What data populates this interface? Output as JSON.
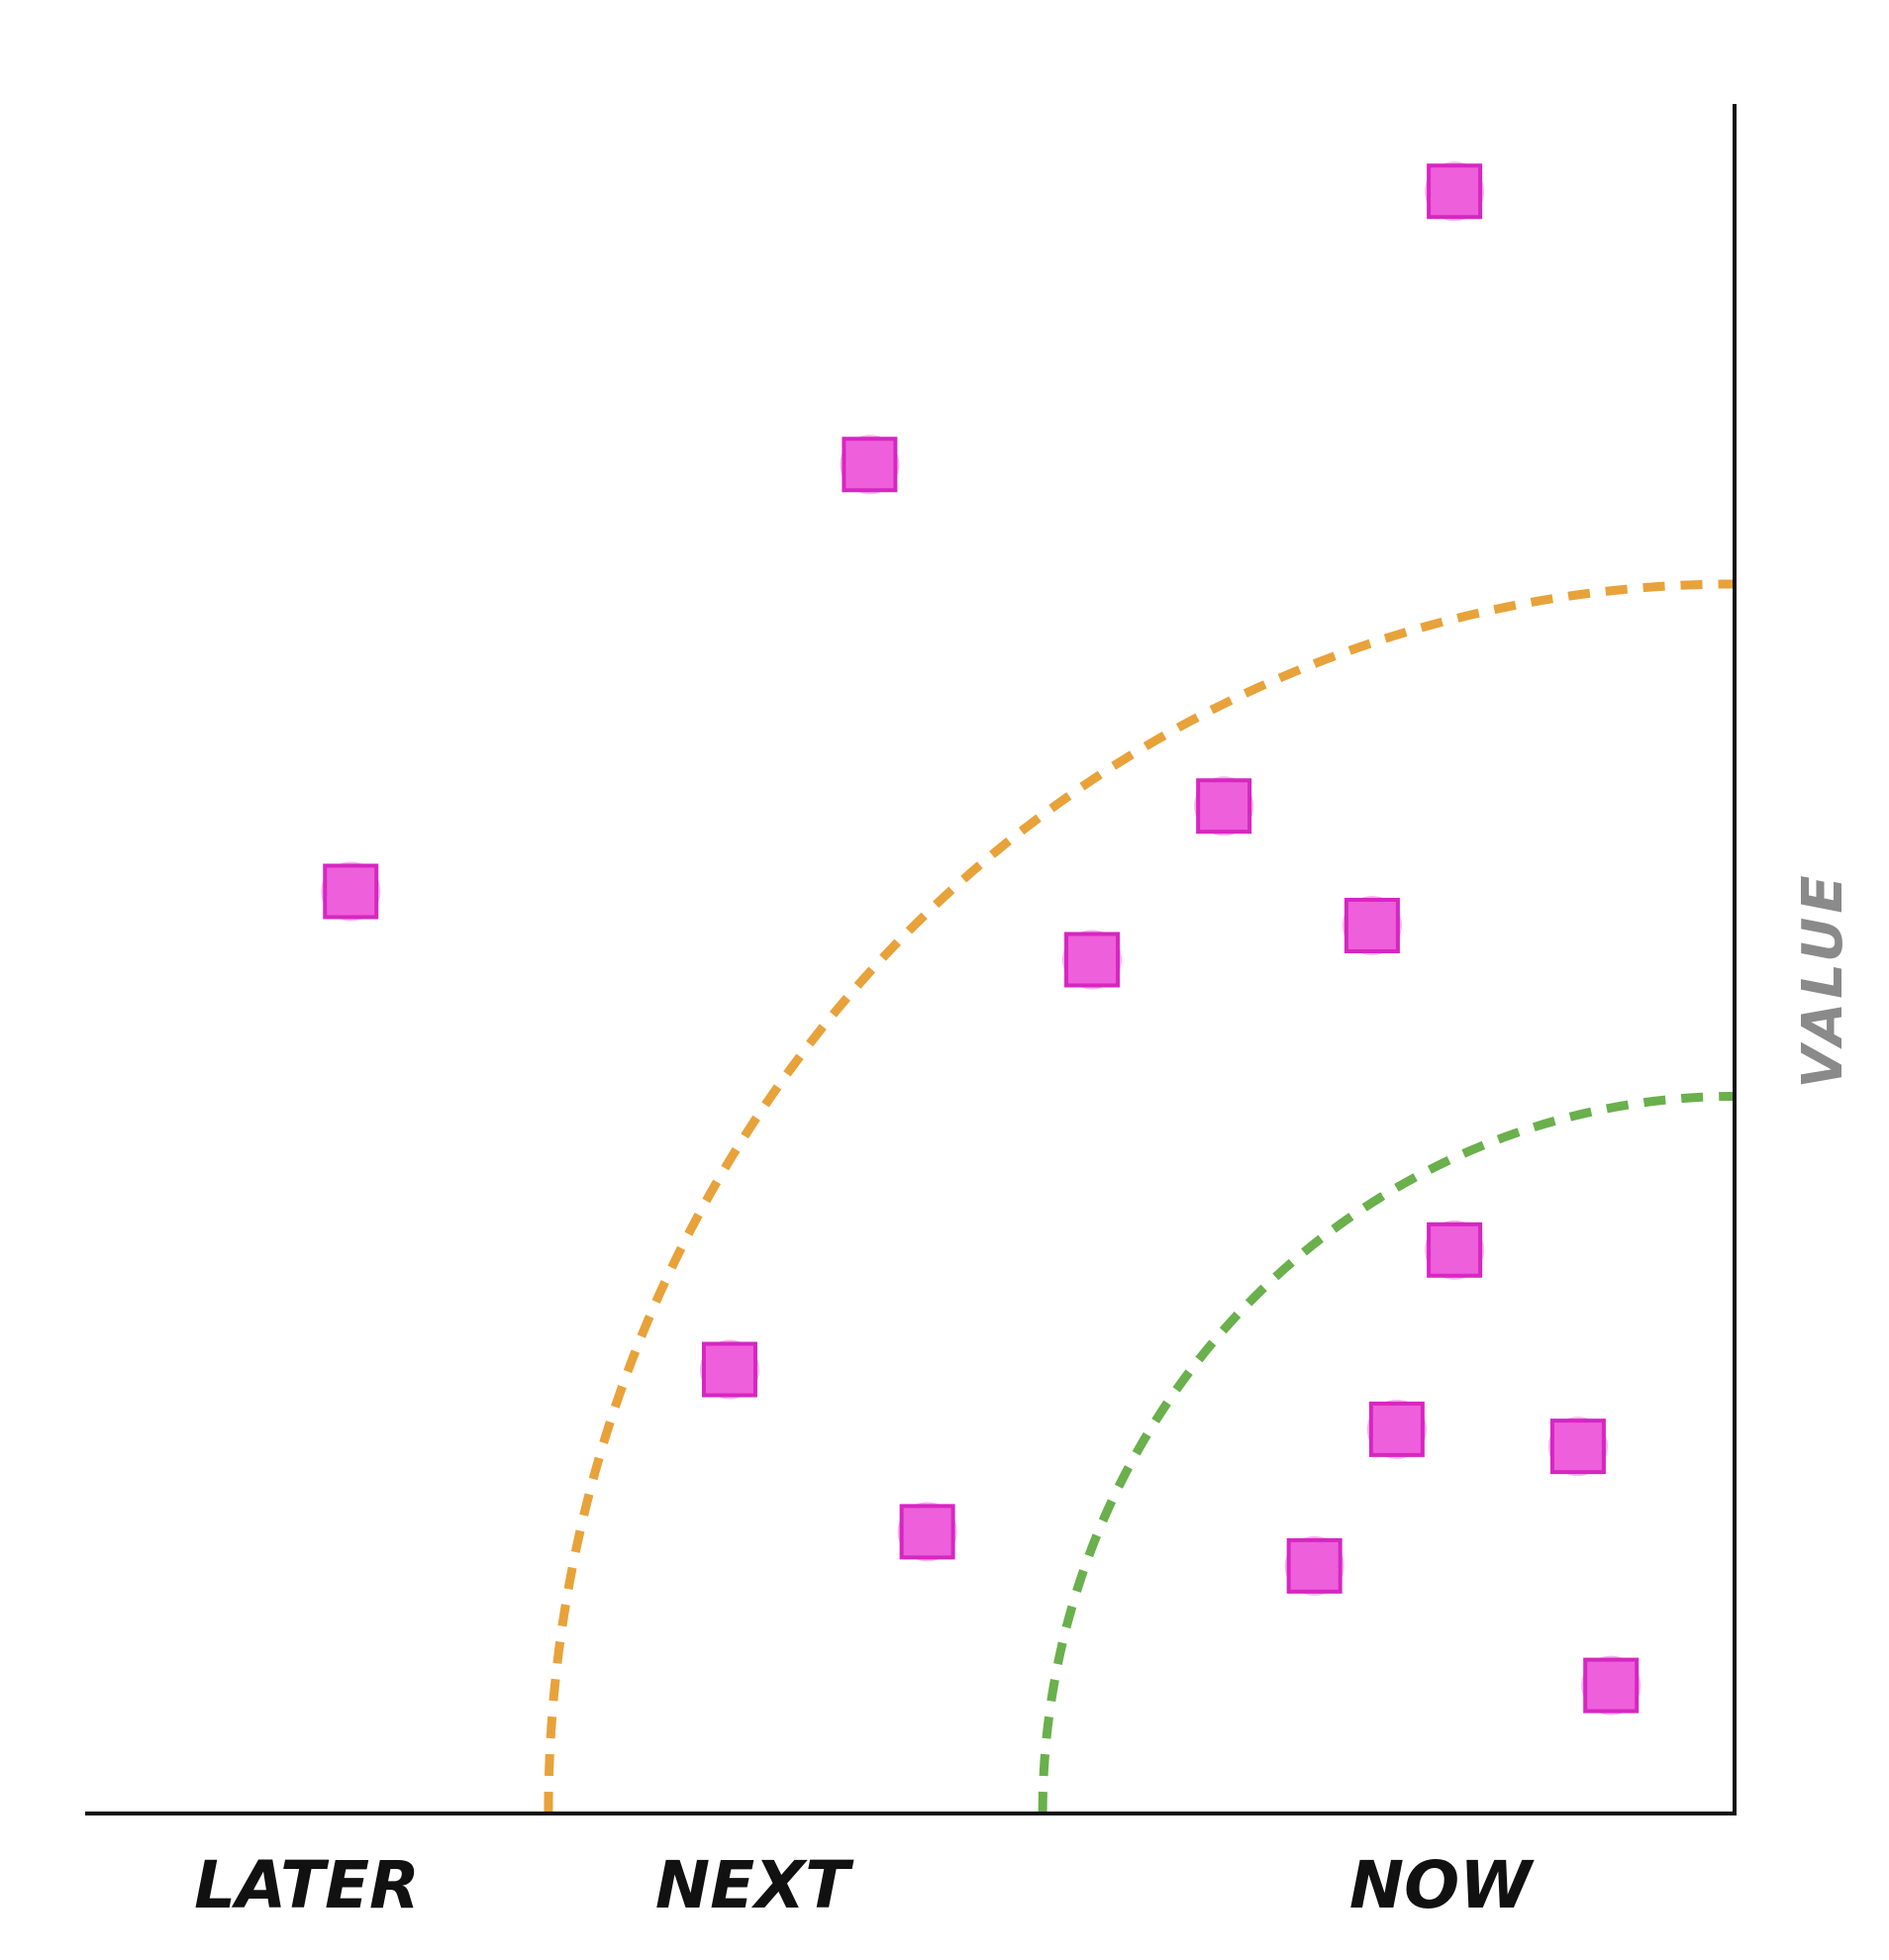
{
  "chart_data": {
    "type": "scatter",
    "title": "",
    "xlabel": "",
    "ylabel": "VALUE",
    "xlim": [
      0,
      100
    ],
    "ylim": [
      0,
      100
    ],
    "grid": false,
    "x_categories": [
      "LATER",
      "NEXT",
      "NOW"
    ],
    "thresholds": [
      {
        "color": "#e8a23a",
        "radius": 72
      },
      {
        "color": "#6ab04c",
        "radius": 42
      }
    ],
    "series": [
      {
        "color": "#ee5fdb",
        "points": [
          {
            "x": 83,
            "y": 95
          },
          {
            "x": 47.5,
            "y": 79
          },
          {
            "x": 16,
            "y": 54
          },
          {
            "x": 69,
            "y": 59
          },
          {
            "x": 61,
            "y": 50
          },
          {
            "x": 78,
            "y": 52
          },
          {
            "x": 83,
            "y": 33
          },
          {
            "x": 39,
            "y": 26
          },
          {
            "x": 79.5,
            "y": 22.5
          },
          {
            "x": 90.5,
            "y": 21.5
          },
          {
            "x": 51,
            "y": 16.5
          },
          {
            "x": 74.5,
            "y": 14.5
          },
          {
            "x": 92.5,
            "y": 7.5
          }
        ]
      }
    ]
  }
}
